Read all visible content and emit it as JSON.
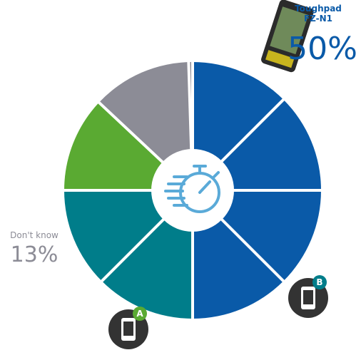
{
  "chart_data": {
    "type": "pie",
    "categories": [
      "Toughpad FZ-N1",
      "B",
      "A",
      "Don't know"
    ],
    "values": [
      50,
      25,
      12,
      13
    ],
    "value_labels": [
      "50%",
      null,
      null,
      "13%"
    ],
    "colors": [
      "#0a5aa8",
      "#007d8a",
      "#5aaa32",
      "#8c8c96"
    ]
  }
}
